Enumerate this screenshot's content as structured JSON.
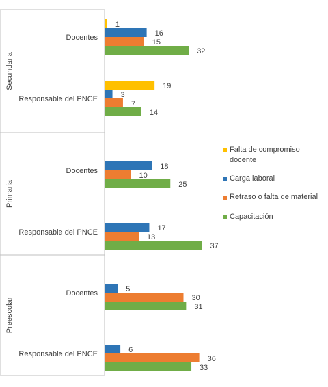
{
  "chart_data": {
    "type": "bar",
    "orientation": "horizontal",
    "series": [
      {
        "name": "Falta de compromiso docente",
        "color": "#FFC000"
      },
      {
        "name": "Carga laboral",
        "color": "#2E75B6"
      },
      {
        "name": "Retraso o falta de material",
        "color": "#ED7D31"
      },
      {
        "name": "Capacitación",
        "color": "#70AD47"
      }
    ],
    "groups": [
      {
        "name": "Secundaria",
        "categories": [
          {
            "name": "Docentes",
            "values": [
              1,
              16,
              15,
              32
            ]
          },
          {
            "name": "Responsable del PNCE",
            "values": [
              19,
              3,
              7,
              14
            ]
          }
        ]
      },
      {
        "name": "Primaria",
        "categories": [
          {
            "name": "Docentes",
            "values": [
              null,
              18,
              10,
              25
            ]
          },
          {
            "name": "Responsable del PNCE",
            "values": [
              null,
              17,
              13,
              37
            ]
          }
        ]
      },
      {
        "name": "Preescolar",
        "categories": [
          {
            "name": "Docentes",
            "values": [
              null,
              5,
              30,
              31
            ]
          },
          {
            "name": "Responsable del PNCE",
            "values": [
              null,
              6,
              36,
              33
            ]
          }
        ]
      }
    ],
    "xlim": [
      0,
      37
    ],
    "grid": false,
    "legend": "right"
  }
}
